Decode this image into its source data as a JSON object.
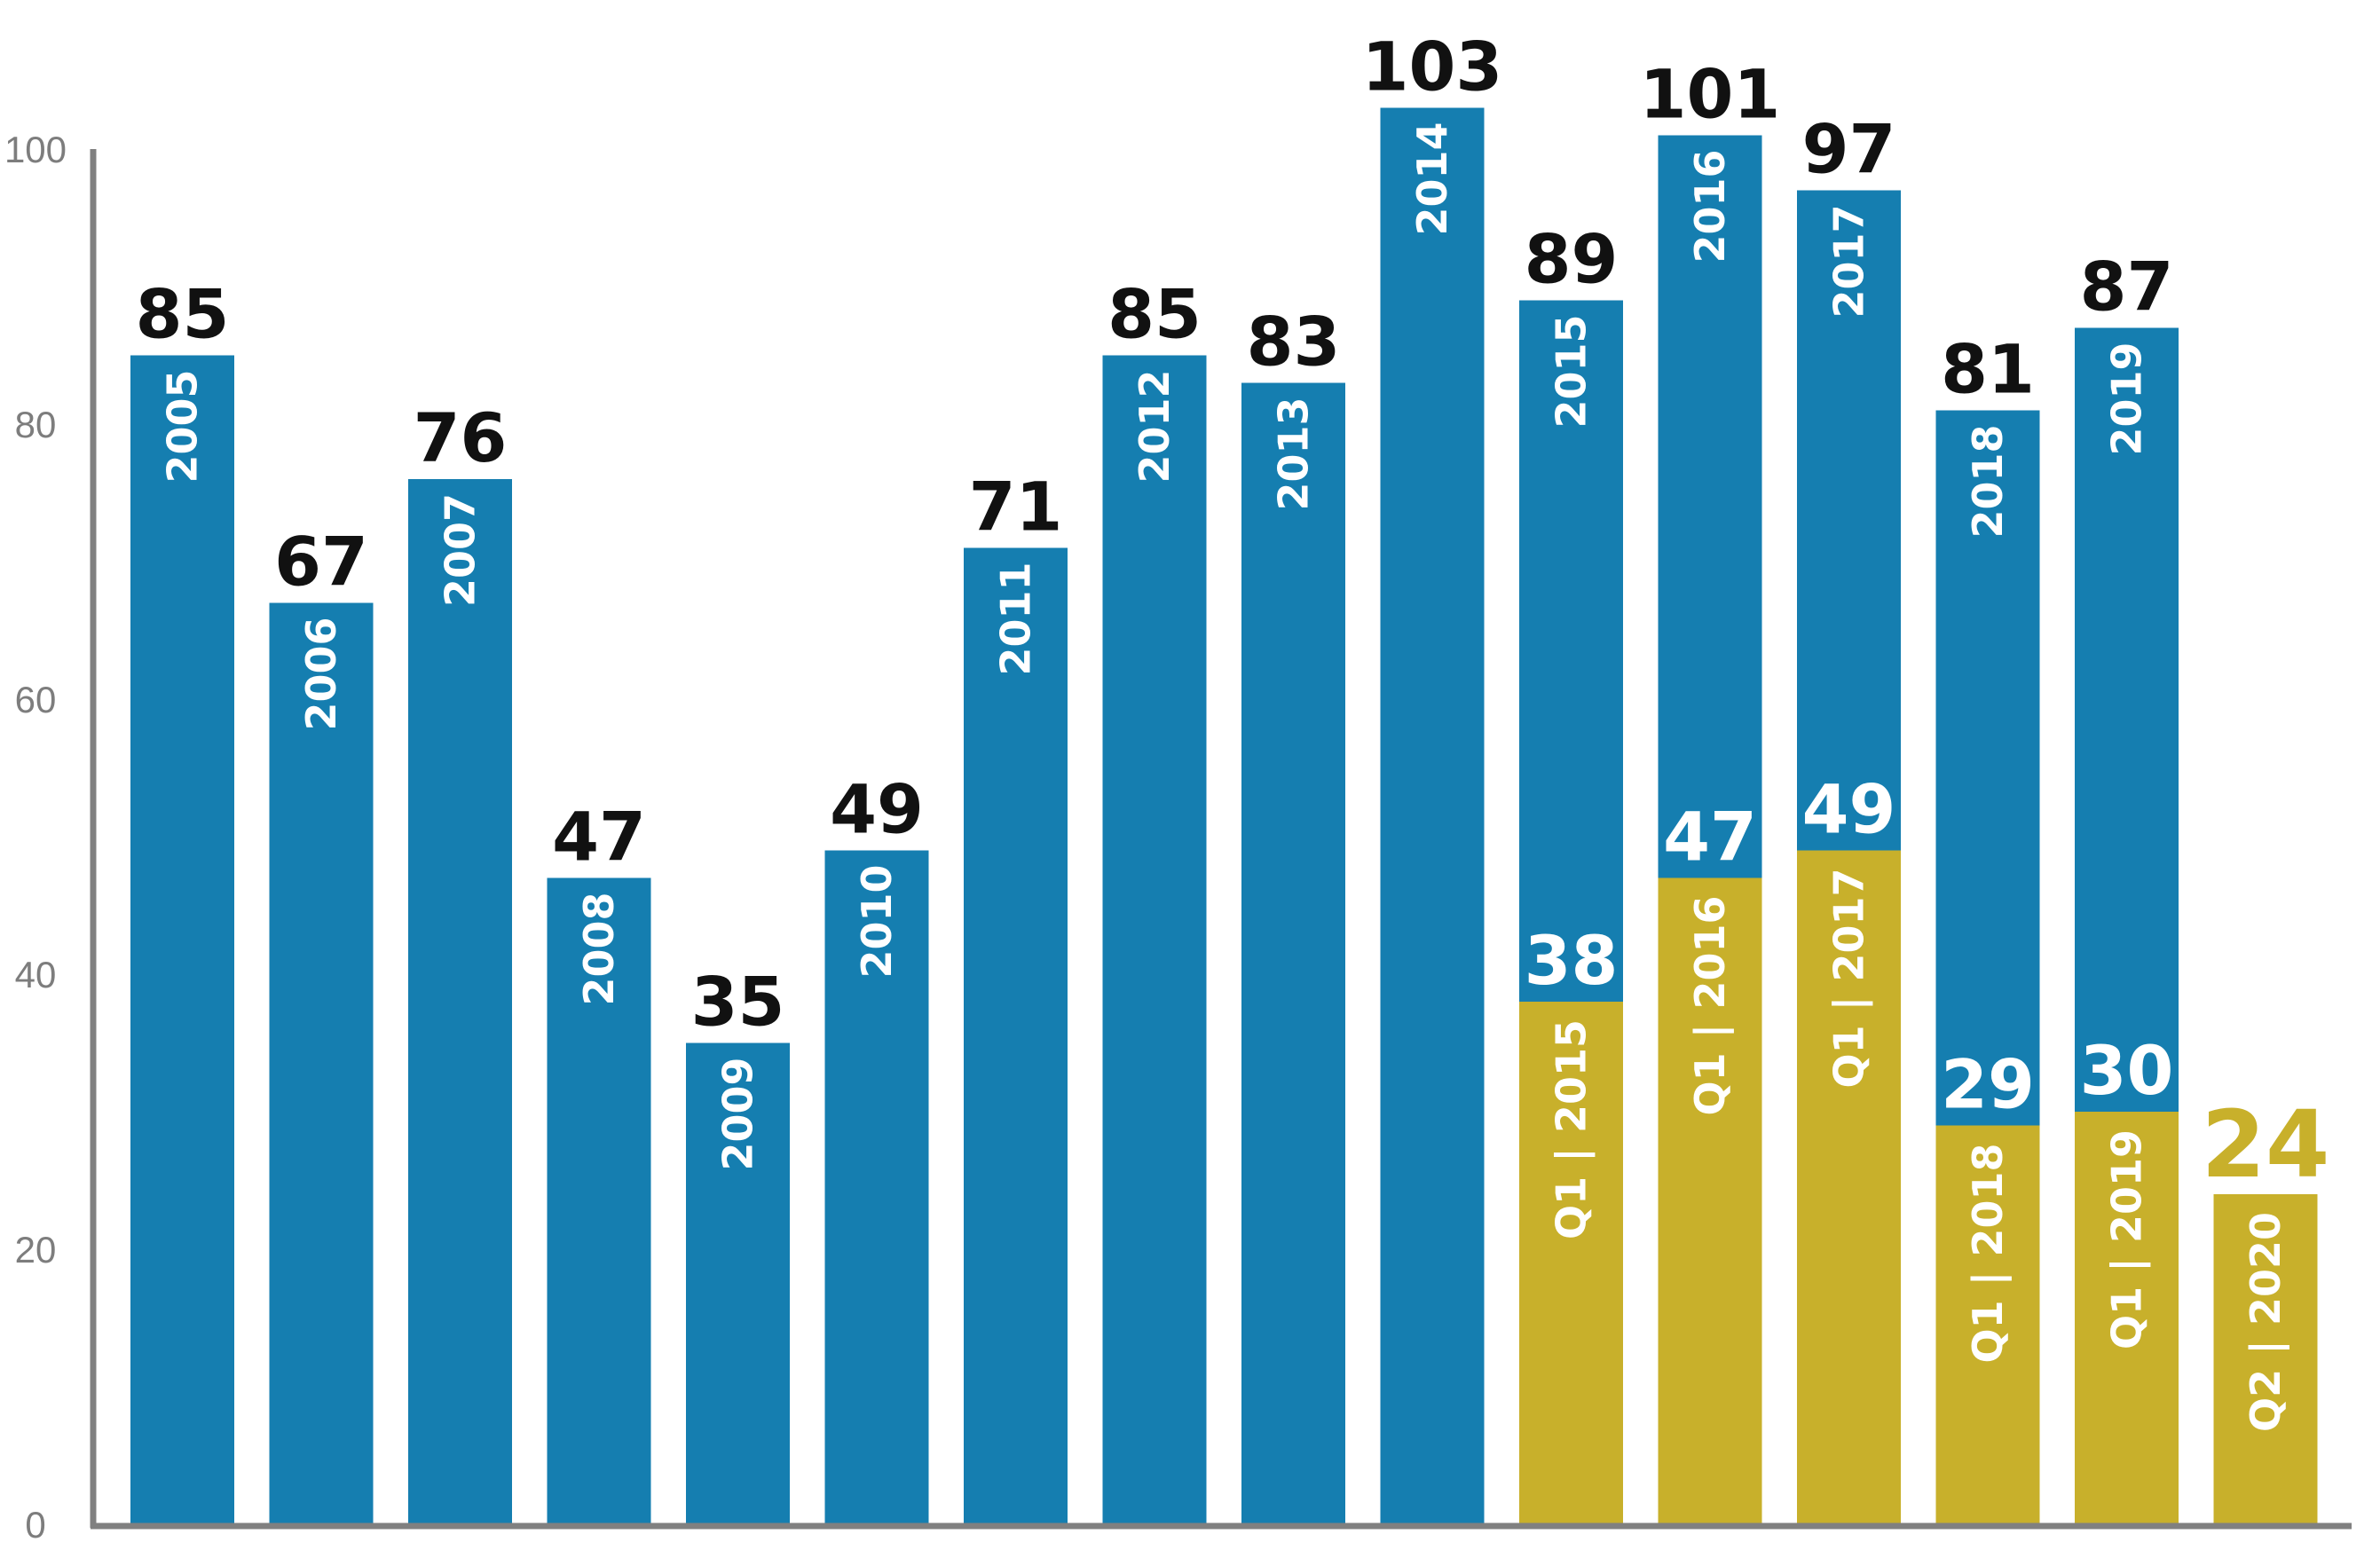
{
  "chart_data": {
    "type": "bar",
    "ylim": [
      0,
      100
    ],
    "yticks": [
      0,
      20,
      40,
      60,
      80,
      100
    ],
    "grid": false,
    "colors": {
      "annual": "#157eb0",
      "quarter": "#c8b02b",
      "axis": "#808080",
      "value_text": "#111111",
      "highlight_text": "#c8b02b"
    },
    "bars": [
      {
        "label": "2005",
        "value": 85,
        "value_label": "85"
      },
      {
        "label": "2006",
        "value": 67,
        "value_label": "67"
      },
      {
        "label": "2007",
        "value": 76,
        "value_label": "76"
      },
      {
        "label": "2008",
        "value": 47,
        "value_label": "47"
      },
      {
        "label": "2009",
        "value": 35,
        "value_label": "35"
      },
      {
        "label": "2010",
        "value": 49,
        "value_label": "49"
      },
      {
        "label": "2011",
        "value": 71,
        "value_label": "71"
      },
      {
        "label": "2012",
        "value": 85,
        "value_label": "85"
      },
      {
        "label": "2013",
        "value": 83,
        "value_label": "83"
      },
      {
        "label": "2014",
        "value": 103,
        "value_label": "103"
      },
      {
        "label": "2015",
        "value": 89,
        "value_label": "89",
        "quarter_label": "Q1 | 2015",
        "quarter_value": 38,
        "quarter_value_label": "38"
      },
      {
        "label": "2016",
        "value": 101,
        "value_label": "101",
        "quarter_label": "Q1 | 2016",
        "quarter_value": 47,
        "quarter_value_label": "47"
      },
      {
        "label": "2017",
        "value": 97,
        "value_label": "97",
        "quarter_label": "Q1 | 2017",
        "quarter_value": 49,
        "quarter_value_label": "49"
      },
      {
        "label": "2018",
        "value": 81,
        "value_label": "81",
        "quarter_label": "Q1 | 2018",
        "quarter_value": 29,
        "quarter_value_label": "29"
      },
      {
        "label": "2019",
        "value": 87,
        "value_label": "87",
        "quarter_label": "Q1 | 2019",
        "quarter_value": 30,
        "quarter_value_label": "30"
      },
      {
        "label": "",
        "value": 0,
        "value_label": "",
        "quarter_label": "Q2 | 2020",
        "quarter_value": 24,
        "quarter_value_label": "24",
        "highlight": true
      }
    ]
  }
}
